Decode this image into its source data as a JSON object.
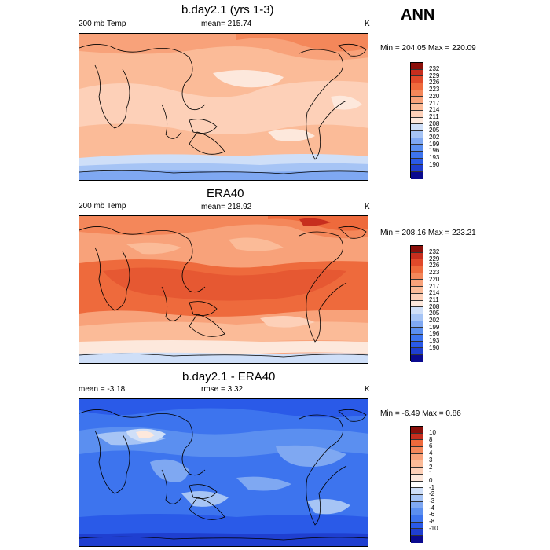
{
  "page": {
    "season": "ANN"
  },
  "palettes": {
    "abs": [
      "#0a0a8f",
      "#1f3fd0",
      "#2a5ae8",
      "#3d74ee",
      "#5b8ff0",
      "#7fa8f2",
      "#a6c4f5",
      "#cfdff8",
      "#fde8dc",
      "#fdd0b8",
      "#fbbb98",
      "#f8a27a",
      "#f4875a",
      "#ee6a3c",
      "#e0492a",
      "#c72e1e",
      "#8a0f0a"
    ],
    "diff": [
      "#0a0a8f",
      "#1f3fd0",
      "#2a5ae8",
      "#3d74ee",
      "#5b8ff0",
      "#7fa8f2",
      "#a6c4f5",
      "#cfdff8",
      "#ffffff",
      "#fde8dc",
      "#fdd0b8",
      "#fbbb98",
      "#f8a27a",
      "#f4875a",
      "#ee6a3c",
      "#c72e1e",
      "#8a0f0a"
    ]
  },
  "chart_data": [
    {
      "type": "heatmap",
      "title": "b.day2.1 (yrs 1-3)",
      "left_label": "200 mb Temp",
      "center_label": "mean= 215.74",
      "units": "K",
      "minmax": "Min = 204.05 Max = 220.09",
      "levels": [
        "232",
        "229",
        "226",
        "223",
        "220",
        "217",
        "214",
        "211",
        "208",
        "205",
        "202",
        "199",
        "196",
        "193",
        "190"
      ],
      "field": "model"
    },
    {
      "type": "heatmap",
      "title": "ERA40",
      "left_label": "200 mb Temp",
      "center_label": "mean= 218.92",
      "units": "K",
      "minmax": "Min = 208.16 Max = 223.21",
      "levels": [
        "232",
        "229",
        "226",
        "223",
        "220",
        "217",
        "214",
        "211",
        "208",
        "205",
        "202",
        "199",
        "196",
        "193",
        "190"
      ],
      "field": "obs"
    },
    {
      "type": "heatmap",
      "title": "b.day2.1 - ERA40",
      "left_label": "mean =  -3.18",
      "center_label": "rmse =   3.32",
      "units": "K",
      "minmax": "Min =  -6.49 Max =   0.86",
      "levels": [
        "10",
        "8",
        "6",
        "4",
        "3",
        "2",
        "1",
        "0",
        "-1",
        "-2",
        "-3",
        "-4",
        "-6",
        "-8",
        "-10"
      ],
      "field": "diff"
    }
  ]
}
